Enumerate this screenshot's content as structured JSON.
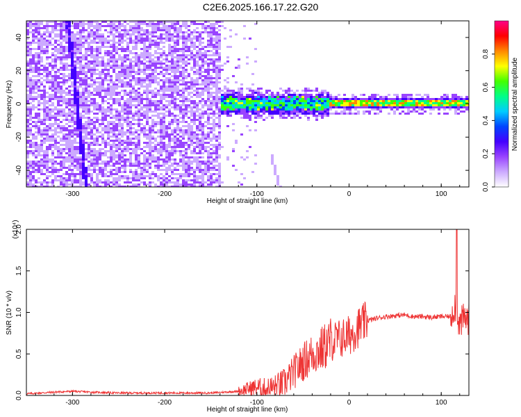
{
  "title": "C2E6.2025.166.17.22.G20",
  "colors": {
    "snr_line": "#ee3333",
    "colormap": [
      "#ffffff",
      "#ccaaff",
      "#9944ff",
      "#4400ff",
      "#0044ff",
      "#00ccff",
      "#00ff88",
      "#44ff00",
      "#ffff00",
      "#ff8800",
      "#ff0000",
      "#ff0088"
    ]
  },
  "chart_data": [
    {
      "type": "heatmap",
      "name": "spectrogram",
      "title": "",
      "xlabel": "Height of straight line (km)",
      "ylabel": "Frequency (Hz)",
      "xlim": [
        -350,
        130
      ],
      "ylim": [
        -50,
        50
      ],
      "xticks": [
        -300,
        -200,
        -100,
        0,
        100
      ],
      "yticks": [
        -40,
        -20,
        0,
        20,
        40
      ],
      "colorbar": {
        "label": "Normalized spectral amplitude",
        "range": [
          0,
          1
        ],
        "ticks": [
          0.0,
          0.2,
          0.4,
          0.6,
          0.8
        ]
      },
      "features": {
        "noise_region_x": [
          -350,
          -140
        ],
        "tracked_band_x": [
          -140,
          130
        ],
        "tracked_band_center_hz": 0,
        "diagonal_track": [
          [
            -305,
            50
          ],
          [
            -285,
            -50
          ]
        ],
        "faint_track": [
          [
            -85,
            -30
          ],
          [
            -75,
            -50
          ]
        ]
      }
    },
    {
      "type": "line",
      "name": "snr",
      "title": "",
      "xlabel": "Height of straight line (km)",
      "ylabel": "SNR (10 * v/v)",
      "scale_label": "(x10⁴)",
      "xlim": [
        -350,
        130
      ],
      "ylim": [
        0,
        2.0
      ],
      "xticks": [
        -300,
        -200,
        -100,
        0,
        100
      ],
      "yticks": [
        0.0,
        0.5,
        1.0,
        1.5,
        2.0
      ],
      "series": [
        {
          "x": [
            -350,
            -320,
            -300,
            -280,
            -250,
            -200,
            -150,
            -120,
            -110,
            -100,
            -90,
            -80,
            -70,
            -60,
            -50,
            -40,
            -30,
            -20,
            -10,
            0,
            10,
            20,
            30,
            40,
            50,
            60,
            70,
            80,
            90,
            100,
            110,
            115,
            120,
            125,
            130
          ],
          "values": [
            0.02,
            0.04,
            0.05,
            0.04,
            0.03,
            0.03,
            0.03,
            0.05,
            0.08,
            0.1,
            0.08,
            0.1,
            0.15,
            0.28,
            0.4,
            0.5,
            0.55,
            0.65,
            0.68,
            0.72,
            0.82,
            0.9,
            0.93,
            0.95,
            0.96,
            0.97,
            0.95,
            0.95,
            0.94,
            0.95,
            0.95,
            1.1,
            0.85,
            0.93,
            0.92
          ]
        }
      ]
    }
  ]
}
